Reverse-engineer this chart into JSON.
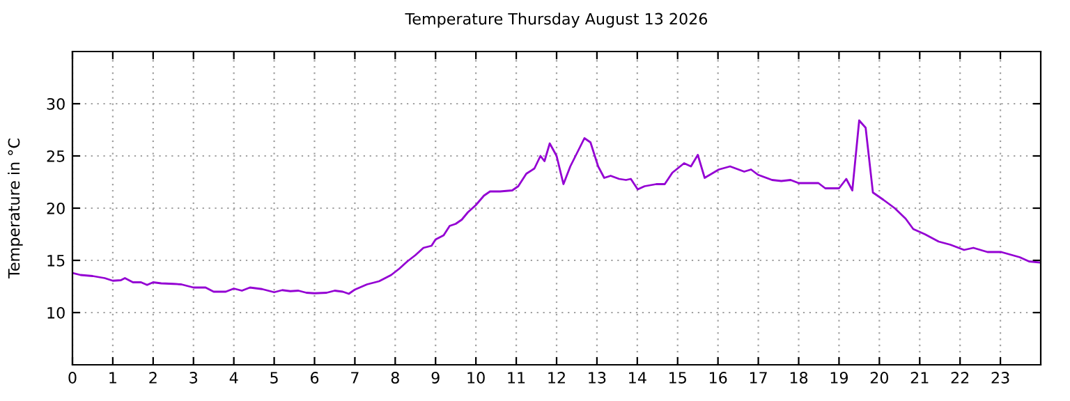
{
  "chart_data": {
    "type": "line",
    "title": "Temperature Thursday August 13 2026",
    "ylabel": "Temperature in °C",
    "x": [
      0,
      0.2,
      0.5,
      0.8,
      1.0,
      1.2,
      1.3,
      1.5,
      1.7,
      1.85,
      2.0,
      2.2,
      2.5,
      2.7,
      3.0,
      3.3,
      3.5,
      3.8,
      4.0,
      4.2,
      4.4,
      4.7,
      5.0,
      5.2,
      5.4,
      5.6,
      5.8,
      6.0,
      6.3,
      6.5,
      6.7,
      6.85,
      7.0,
      7.3,
      7.6,
      7.9,
      8.1,
      8.3,
      8.5,
      8.7,
      8.9,
      9.0,
      9.2,
      9.35,
      9.5,
      9.65,
      9.8,
      10.0,
      10.2,
      10.35,
      10.6,
      10.9,
      11.05,
      11.25,
      11.45,
      11.6,
      11.7,
      11.83,
      12.0,
      12.17,
      12.34,
      12.69,
      12.84,
      13.03,
      13.18,
      13.34,
      13.55,
      13.72,
      13.84,
      14.01,
      14.18,
      14.47,
      14.68,
      14.87,
      15.16,
      15.33,
      15.5,
      15.67,
      16.02,
      16.3,
      16.65,
      16.82,
      16.99,
      17.34,
      17.57,
      17.8,
      18.0,
      18.49,
      18.66,
      19.0,
      19.18,
      19.33,
      19.5,
      19.66,
      19.84,
      20.1,
      20.38,
      20.65,
      20.84,
      21.13,
      21.47,
      21.76,
      22.1,
      22.33,
      22.68,
      23.02,
      23.48,
      23.71,
      23.96
    ],
    "series": [
      {
        "color": "#9400d3",
        "values": [
          13.8,
          13.6,
          13.5,
          13.3,
          13.05,
          13.1,
          13.3,
          12.9,
          12.9,
          12.65,
          12.9,
          12.8,
          12.75,
          12.7,
          12.4,
          12.4,
          12.0,
          12.0,
          12.3,
          12.1,
          12.4,
          12.25,
          11.95,
          12.15,
          12.05,
          12.1,
          11.9,
          11.85,
          11.9,
          12.1,
          12.0,
          11.8,
          12.2,
          12.7,
          13.0,
          13.6,
          14.2,
          14.9,
          15.5,
          16.2,
          16.4,
          17.0,
          17.4,
          18.3,
          18.5,
          18.9,
          19.6,
          20.3,
          21.2,
          21.6,
          21.6,
          21.7,
          22.1,
          23.3,
          23.8,
          25.0,
          24.5,
          26.2,
          25.0,
          22.3,
          24.0,
          26.7,
          26.3,
          24.0,
          22.9,
          23.1,
          22.8,
          22.7,
          22.8,
          21.8,
          22.1,
          22.3,
          22.3,
          23.4,
          24.3,
          24.0,
          25.1,
          22.9,
          23.7,
          24.0,
          23.5,
          23.7,
          23.2,
          22.7,
          22.6,
          22.7,
          22.4,
          22.4,
          21.9,
          21.9,
          22.8,
          21.7,
          28.4,
          27.7,
          21.5,
          20.8,
          20.0,
          19.0,
          18.0,
          17.5,
          16.8,
          16.5,
          16.0,
          16.2,
          15.8,
          15.8,
          15.3,
          14.9,
          14.8
        ]
      }
    ],
    "xlim": [
      0,
      24
    ],
    "xticks": [
      0,
      1,
      2,
      3,
      4,
      5,
      6,
      7,
      8,
      9,
      10,
      11,
      12,
      13,
      14,
      15,
      16,
      17,
      18,
      19,
      20,
      21,
      22,
      23
    ],
    "ylim": [
      5,
      35
    ],
    "yticks": [
      10,
      15,
      20,
      25,
      30
    ],
    "grid": true,
    "line_style": "solid",
    "marker": "none"
  }
}
